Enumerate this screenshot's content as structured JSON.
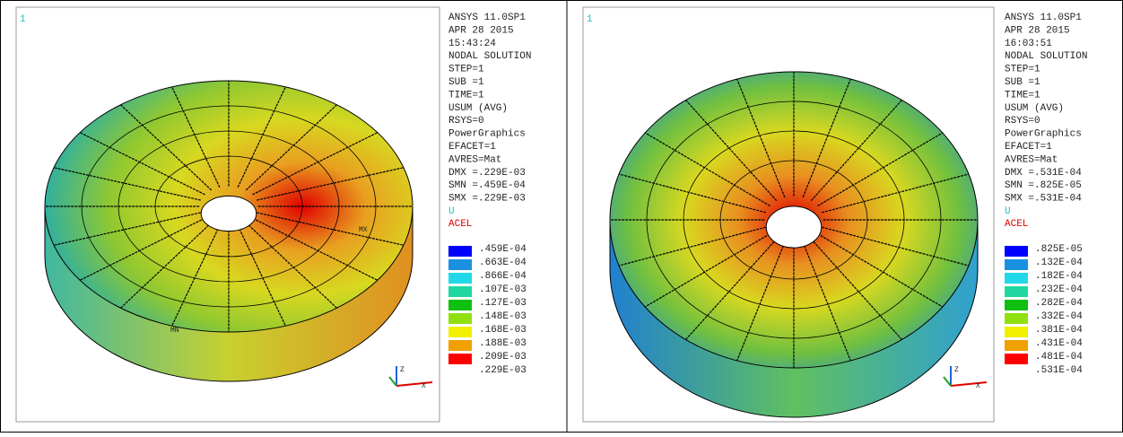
{
  "panels": [
    {
      "corner_label": "1",
      "info": [
        "ANSYS 11.0SP1",
        "APR 28 2015",
        "15:43:24",
        "NODAL SOLUTION",
        "STEP=1",
        "SUB =1",
        "TIME=1",
        "USUM      (AVG)",
        "RSYS=0",
        "PowerGraphics",
        "EFACET=1",
        "AVRES=Mat",
        "DMX =.229E-03",
        "SMN =.459E-04",
        "SMX =.229E-03"
      ],
      "u_label": "U",
      "acel_label": "ACEL",
      "legend": [
        ".459E-04",
        ".663E-04",
        ".866E-04",
        ".107E-03",
        ".127E-03",
        ".148E-03",
        ".168E-03",
        ".188E-03",
        ".209E-03",
        ".229E-03"
      ],
      "model_labels": [
        "MX",
        "MN"
      ],
      "axis_labels": [
        "Z",
        "X"
      ]
    },
    {
      "corner_label": "1",
      "info": [
        "ANSYS 11.0SP1",
        "APR 28 2015",
        "16:03:51",
        "NODAL SOLUTION",
        "STEP=1",
        "SUB =1",
        "TIME=1",
        "USUM      (AVG)",
        "RSYS=0",
        "PowerGraphics",
        "EFACET=1",
        "AVRES=Mat",
        "DMX =.531E-04",
        "SMN =.825E-05",
        "SMX =.531E-04"
      ],
      "u_label": "U",
      "acel_label": "ACEL",
      "legend": [
        ".825E-05",
        ".132E-04",
        ".182E-04",
        ".232E-04",
        ".282E-04",
        ".332E-04",
        ".381E-04",
        ".431E-04",
        ".481E-04",
        ".531E-04"
      ],
      "model_labels": [],
      "axis_labels": [
        "Z",
        "X"
      ]
    }
  ]
}
